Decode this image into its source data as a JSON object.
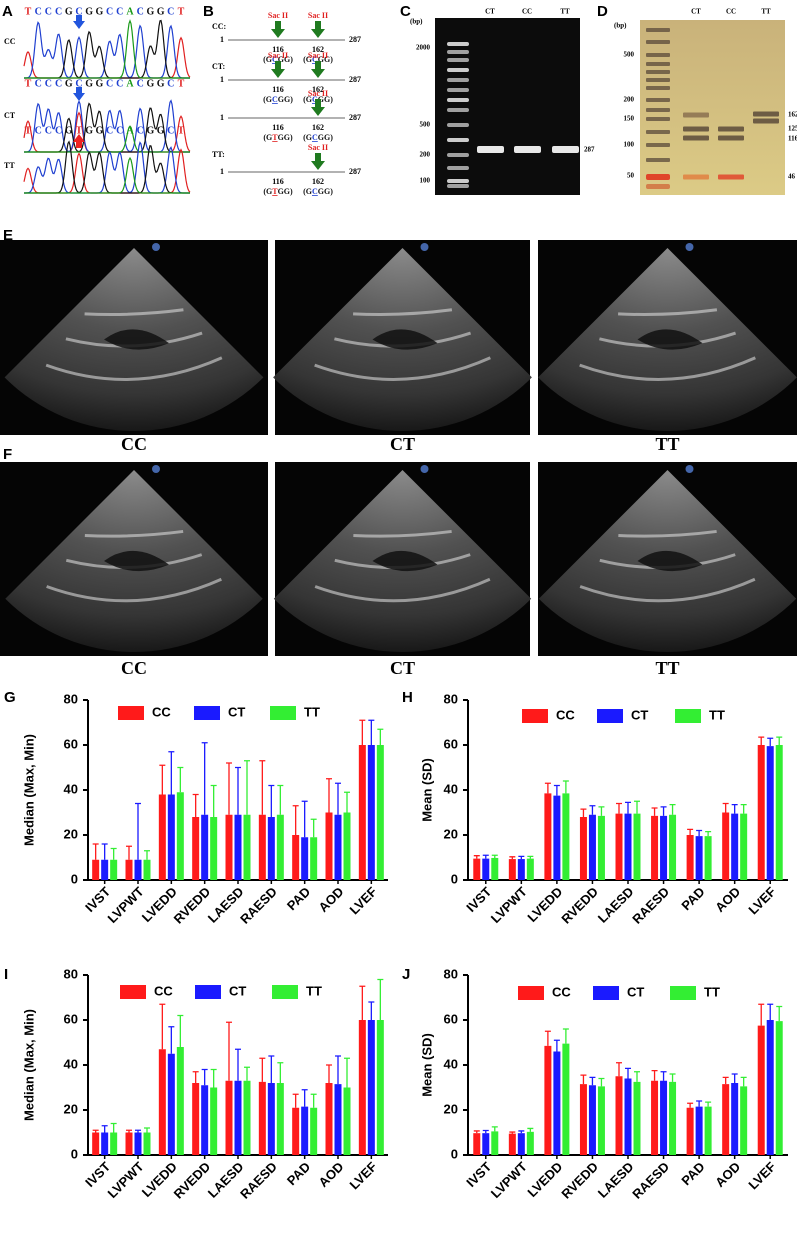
{
  "panel_labels": [
    "A",
    "B",
    "C",
    "D",
    "E",
    "F",
    "G",
    "H",
    "I",
    "J"
  ],
  "sequencing": {
    "genotypes": [
      "CC",
      "CT",
      "TT"
    ],
    "sequences": [
      [
        "T",
        "C",
        "C",
        "C",
        "G",
        "C",
        "G",
        "G",
        "C",
        "C",
        "A",
        "C",
        "G",
        "G",
        "C",
        "T"
      ],
      [
        "T",
        "C",
        "C",
        "C",
        "G",
        "C",
        "G",
        "G",
        "C",
        "C",
        "A",
        "C",
        "G",
        "G",
        "C",
        "T"
      ],
      [
        "T",
        "C",
        "C",
        "C",
        "G",
        "T",
        "G",
        "G",
        "C",
        "C",
        "A",
        "C",
        "G",
        "G",
        "C",
        "T"
      ]
    ]
  },
  "restriction_map": {
    "rows": [
      {
        "label": "CC:",
        "start": 1,
        "end": 287,
        "sites": [
          {
            "enzyme": "Sac II",
            "position": 116,
            "motif": [
              "(G",
              "C",
              "GG)"
            ]
          },
          {
            "enzyme": "Sac II",
            "position": 162,
            "motif": [
              "(G",
              "C",
              "GG)"
            ]
          }
        ]
      },
      {
        "label": "CT:",
        "start": 1,
        "end": 287,
        "sites": [
          {
            "enzyme": "Sac II",
            "position": 116,
            "motif": [
              "(G",
              "C",
              "GG)"
            ]
          },
          {
            "enzyme": "Sac II",
            "position": 162,
            "motif": [
              "(G",
              "C",
              "GG)"
            ]
          }
        ]
      },
      {
        "start": 1,
        "end": 287,
        "sites": [
          {
            "position": 116,
            "motif": [
              "(G",
              "T",
              "GG)"
            ]
          },
          {
            "enzyme": "Sac II",
            "position": 162,
            "motif": [
              "(G",
              "C",
              "GG)"
            ]
          }
        ]
      },
      {
        "label": "TT:",
        "start": 1,
        "end": 287,
        "sites": [
          {
            "position": 116,
            "motif": [
              "(G",
              "T",
              "GG)"
            ]
          },
          {
            "enzyme": "Sac II",
            "position": 162,
            "motif": [
              "(G",
              "C",
              "GG)"
            ]
          }
        ]
      }
    ]
  },
  "gel_c": {
    "unit": "(bp)",
    "lanes": [
      "CT",
      "CC",
      "TT"
    ],
    "ladder": [
      2000,
      500,
      200,
      100
    ],
    "bands": [
      287
    ]
  },
  "gel_d": {
    "unit": "(bp)",
    "lanes": [
      "CT",
      "CC",
      "TT"
    ],
    "ladder": [
      500,
      200,
      150,
      100,
      50
    ],
    "bands": [
      162,
      125,
      116,
      46
    ]
  },
  "echo_e": {
    "captions": [
      "CC",
      "CT",
      "TT"
    ]
  },
  "echo_f": {
    "captions": [
      "CC",
      "CT",
      "TT"
    ]
  },
  "chart_data": [
    {
      "type": "bar",
      "y_label": "Median (Max, Min)",
      "categories": [
        "IVST",
        "LVPWT",
        "LVEDD",
        "RVEDD",
        "LAESD",
        "RAESD",
        "PAD",
        "AOD",
        "LVEF"
      ],
      "ylim": [
        0,
        80
      ],
      "yticks": [
        0,
        20,
        40,
        60,
        80
      ],
      "series": [
        {
          "name": "CC",
          "color": "#ff1a1a",
          "values": [
            9,
            9,
            38,
            28,
            29,
            29,
            20,
            30,
            60
          ],
          "max": [
            16,
            15,
            51,
            38,
            52,
            53,
            33,
            45,
            71
          ]
        },
        {
          "name": "CT",
          "color": "#1a1aff",
          "values": [
            9,
            9,
            38,
            29,
            29,
            28,
            19,
            29,
            60
          ],
          "max": [
            16,
            34,
            57,
            61,
            50,
            42,
            35,
            43,
            71
          ]
        },
        {
          "name": "TT",
          "color": "#33ee33",
          "values": [
            9,
            9,
            39,
            28,
            29,
            29,
            19,
            30,
            60
          ],
          "max": [
            14,
            13,
            50,
            42,
            53,
            42,
            27,
            39,
            67
          ]
        }
      ]
    },
    {
      "type": "bar",
      "y_label": "Mean (SD)",
      "categories": [
        "IVST",
        "LVPWT",
        "LVEDD",
        "RVEDD",
        "LAESD",
        "RAESD",
        "PAD",
        "AOD",
        "LVEF"
      ],
      "ylim": [
        0,
        80
      ],
      "yticks": [
        0,
        20,
        40,
        60,
        80
      ],
      "series": [
        {
          "name": "CC",
          "color": "#ff1a1a",
          "values": [
            9.5,
            9.3,
            38.5,
            28,
            29.5,
            28.5,
            20,
            30,
            60
          ],
          "sd": [
            1.3,
            1,
            4.5,
            3.5,
            4.5,
            3.5,
            2.5,
            4,
            3.5
          ]
        },
        {
          "name": "CT",
          "color": "#1a1aff",
          "values": [
            9.5,
            9.3,
            37.5,
            29,
            29.5,
            28.5,
            19.5,
            29.5,
            59.5
          ],
          "sd": [
            1.5,
            1.2,
            4.5,
            4,
            5,
            4,
            2.5,
            4,
            3.5
          ]
        },
        {
          "name": "TT",
          "color": "#33ee33",
          "values": [
            9.8,
            9.5,
            38.5,
            28.5,
            29.5,
            29,
            19.5,
            29.5,
            60
          ],
          "sd": [
            1.2,
            1,
            5.5,
            4,
            5.5,
            4.5,
            2,
            4,
            3.5
          ]
        }
      ]
    },
    {
      "type": "bar",
      "y_label": "Median (Max, Min)",
      "categories": [
        "IVST",
        "LVPWT",
        "LVEDD",
        "RVEDD",
        "LAESD",
        "RAESD",
        "PAD",
        "AOD",
        "LVEF"
      ],
      "ylim": [
        0,
        80
      ],
      "yticks": [
        0,
        20,
        40,
        60,
        80
      ],
      "series": [
        {
          "name": "CC",
          "color": "#ff1a1a",
          "values": [
            10,
            10,
            47,
            32,
            33,
            32.5,
            21,
            32,
            60
          ],
          "max": [
            11,
            11,
            67,
            37,
            59,
            43,
            27,
            40,
            75
          ]
        },
        {
          "name": "CT",
          "color": "#1a1aff",
          "values": [
            10,
            10,
            45,
            31,
            33,
            32,
            21.5,
            31.5,
            60
          ],
          "max": [
            13,
            11,
            57,
            38,
            47,
            44,
            29,
            44,
            68
          ]
        },
        {
          "name": "TT",
          "color": "#33ee33",
          "values": [
            10,
            10,
            48,
            30,
            33,
            32,
            21,
            30,
            60
          ],
          "max": [
            14,
            12,
            62,
            38,
            39,
            41,
            27,
            43,
            78
          ]
        }
      ]
    },
    {
      "type": "bar",
      "y_label": "Mean (SD)",
      "categories": [
        "IVST",
        "LVPWT",
        "LVEDD",
        "RVEDD",
        "LAESD",
        "RAESD",
        "PAD",
        "AOD",
        "LVEF"
      ],
      "ylim": [
        0,
        80
      ],
      "yticks": [
        0,
        20,
        40,
        60,
        80
      ],
      "series": [
        {
          "name": "CC",
          "color": "#ff1a1a",
          "values": [
            9.7,
            9.5,
            48.5,
            31.5,
            35,
            33,
            21,
            31.5,
            57.5
          ],
          "sd": [
            1,
            0.7,
            6.5,
            4,
            6,
            4.5,
            2,
            3,
            9.5
          ]
        },
        {
          "name": "CT",
          "color": "#1a1aff",
          "values": [
            9.7,
            9.7,
            46,
            31,
            34,
            33,
            21.5,
            32,
            60
          ],
          "sd": [
            1.2,
            1,
            5,
            3.5,
            4.5,
            4,
            2.5,
            4,
            7
          ]
        },
        {
          "name": "TT",
          "color": "#33ee33",
          "values": [
            10.5,
            10.3,
            49.5,
            30.5,
            32.5,
            32.5,
            21.5,
            30.5,
            59.5
          ],
          "sd": [
            2,
            1.5,
            6.5,
            3.5,
            4.5,
            3.5,
            2,
            4,
            6.5
          ]
        }
      ]
    }
  ]
}
